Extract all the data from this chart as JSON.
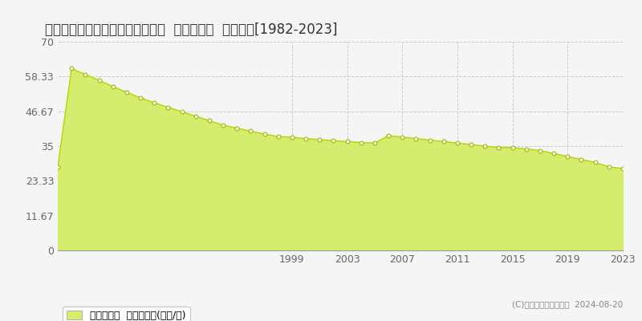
{
  "title": "神奈川県中郡大磯町月京９９番３  基準地価格  地価推移[1982-2023]",
  "years": [
    1982,
    1983,
    1984,
    1985,
    1986,
    1987,
    1988,
    1989,
    1990,
    1991,
    1992,
    1993,
    1994,
    1995,
    1996,
    1997,
    1998,
    1999,
    2000,
    2001,
    2002,
    2003,
    2004,
    2005,
    2006,
    2007,
    2008,
    2009,
    2010,
    2011,
    2012,
    2013,
    2014,
    2015,
    2016,
    2017,
    2018,
    2019,
    2020,
    2021,
    2022,
    2023
  ],
  "values": [
    28.0,
    61.0,
    59.0,
    57.0,
    55.0,
    53.0,
    51.2,
    49.5,
    48.0,
    46.5,
    45.0,
    43.5,
    42.0,
    41.0,
    40.0,
    39.0,
    38.2,
    38.0,
    37.5,
    37.2,
    36.8,
    36.5,
    36.2,
    36.0,
    38.5,
    38.0,
    37.5,
    37.0,
    36.5,
    36.0,
    35.5,
    35.0,
    34.5,
    34.5,
    34.0,
    33.5,
    32.5,
    31.5,
    30.5,
    29.5,
    28.0,
    27.5
  ],
  "fill_color": "#d4ed6e",
  "line_color": "#b8d400",
  "marker_color": "#ffffff",
  "marker_edge_color": "#a0b800",
  "background_color": "#f5f5f5",
  "plot_bg_color": "#f5f5f5",
  "grid_color": "#cccccc",
  "yticks": [
    0,
    11.67,
    23.33,
    35,
    46.67,
    58.33,
    70
  ],
  "ytick_labels": [
    "0",
    "11.67",
    "23.33",
    "35",
    "46.67",
    "58.33",
    "70"
  ],
  "xticks": [
    1999,
    2003,
    2007,
    2011,
    2015,
    2019,
    2023
  ],
  "ylim": [
    0,
    70
  ],
  "xlim": [
    1982,
    2023
  ],
  "legend_label": "基準地価格  平均坪単価(万円/坪)",
  "copyright_text": "(C)土地価格ドットコム  2024-08-20",
  "title_fontsize": 12,
  "axis_fontsize": 9,
  "legend_fontsize": 9
}
